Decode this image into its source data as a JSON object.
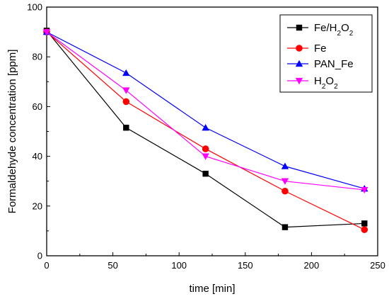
{
  "chart_data": {
    "type": "line",
    "title": "",
    "xlabel": "time [min]",
    "ylabel": "Formaldehyde concentration [ppm]",
    "xlim": [
      0,
      250
    ],
    "ylim": [
      0,
      100
    ],
    "xticks": [
      0,
      50,
      100,
      150,
      200,
      250
    ],
    "yticks": [
      0,
      20,
      40,
      60,
      80,
      100
    ],
    "grid": false,
    "legend_position": "top-right",
    "series": [
      {
        "name": "Fe/H2O2",
        "legend_main": "Fe/H",
        "legend_sub1": "2",
        "legend_mid": "O",
        "legend_sub2": "2",
        "color": "#000000",
        "marker": "square",
        "x": [
          0,
          60,
          120,
          180,
          240
        ],
        "y": [
          90.5,
          51.5,
          33,
          11.5,
          13
        ]
      },
      {
        "name": "Fe",
        "legend_main": "Fe",
        "legend_sub1": "",
        "legend_mid": "",
        "legend_sub2": "",
        "color": "#ff0000",
        "marker": "circle",
        "x": [
          0,
          60,
          120,
          180,
          240
        ],
        "y": [
          90,
          62,
          43,
          26,
          10.5
        ]
      },
      {
        "name": "PAN_Fe",
        "legend_main": "PAN_Fe",
        "legend_sub1": "",
        "legend_mid": "",
        "legend_sub2": "",
        "color": "#0000ff",
        "marker": "triangle-up",
        "x": [
          0,
          60,
          120,
          180,
          240
        ],
        "y": [
          90,
          73.5,
          51.5,
          36,
          27
        ]
      },
      {
        "name": "H2O2",
        "legend_main": "H",
        "legend_sub1": "2",
        "legend_mid": "O",
        "legend_sub2": "2",
        "color": "#ff00ff",
        "marker": "triangle-down",
        "x": [
          0,
          60,
          120,
          180,
          240
        ],
        "y": [
          90,
          66.5,
          40,
          30,
          26.5
        ]
      }
    ]
  }
}
